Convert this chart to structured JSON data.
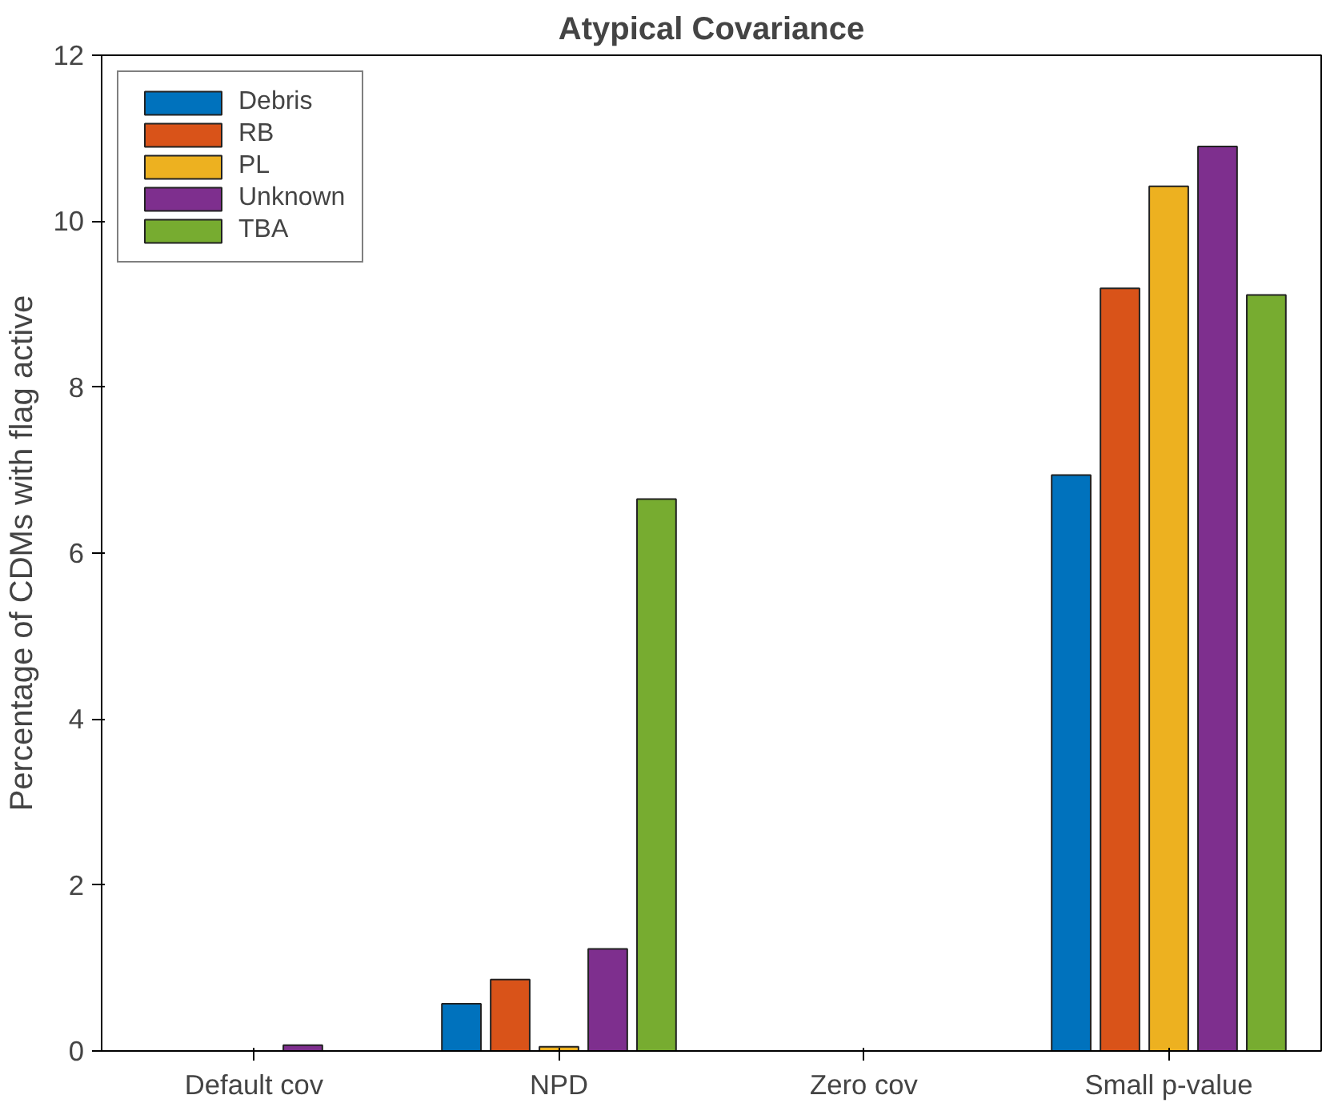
{
  "chart_data": {
    "type": "bar",
    "title": "Atypical Covariance",
    "ylabel": "Percentage of CDMs with flag active",
    "categories": [
      "Default cov",
      "NPD",
      "Zero cov",
      "Small p-value"
    ],
    "series": [
      {
        "name": "Debris",
        "color": "#0072bd",
        "values": [
          null,
          0.57,
          0,
          6.94
        ]
      },
      {
        "name": "RB",
        "color": "#d95319",
        "values": [
          null,
          0.86,
          0,
          9.19
        ]
      },
      {
        "name": "PL",
        "color": "#edb120",
        "values": [
          0,
          0.05,
          0,
          10.42
        ]
      },
      {
        "name": "Unknown",
        "color": "#7e2f8e",
        "values": [
          0.07,
          1.23,
          0,
          10.9
        ]
      },
      {
        "name": "TBA",
        "color": "#77ac30",
        "values": [
          0,
          6.65,
          0,
          9.11
        ]
      }
    ],
    "ylim": [
      0,
      12
    ],
    "yticks": [
      0,
      2,
      4,
      6,
      8,
      10,
      12
    ],
    "grid": false,
    "legend": "top left"
  }
}
